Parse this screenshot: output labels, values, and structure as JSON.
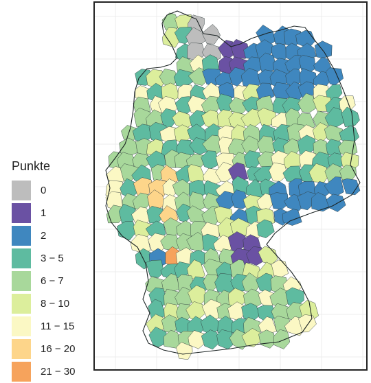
{
  "legend": {
    "title": "Punkte",
    "classes": [
      {
        "label": "0",
        "color": "#bdbdbd"
      },
      {
        "label": "1",
        "color": "#6a51a3"
      },
      {
        "label": "2",
        "color": "#3f87bf"
      },
      {
        "label": "3 − 5",
        "color": "#5ebba0"
      },
      {
        "label": "6 − 7",
        "color": "#a8d89b"
      },
      {
        "label": "8 − 10",
        "color": "#dcee9c"
      },
      {
        "label": "11 − 15",
        "color": "#fbf8c4"
      },
      {
        "label": "16 − 20",
        "color": "#fdd58a"
      },
      {
        "label": "21 − 30",
        "color": "#f6a35c"
      }
    ]
  }
}
